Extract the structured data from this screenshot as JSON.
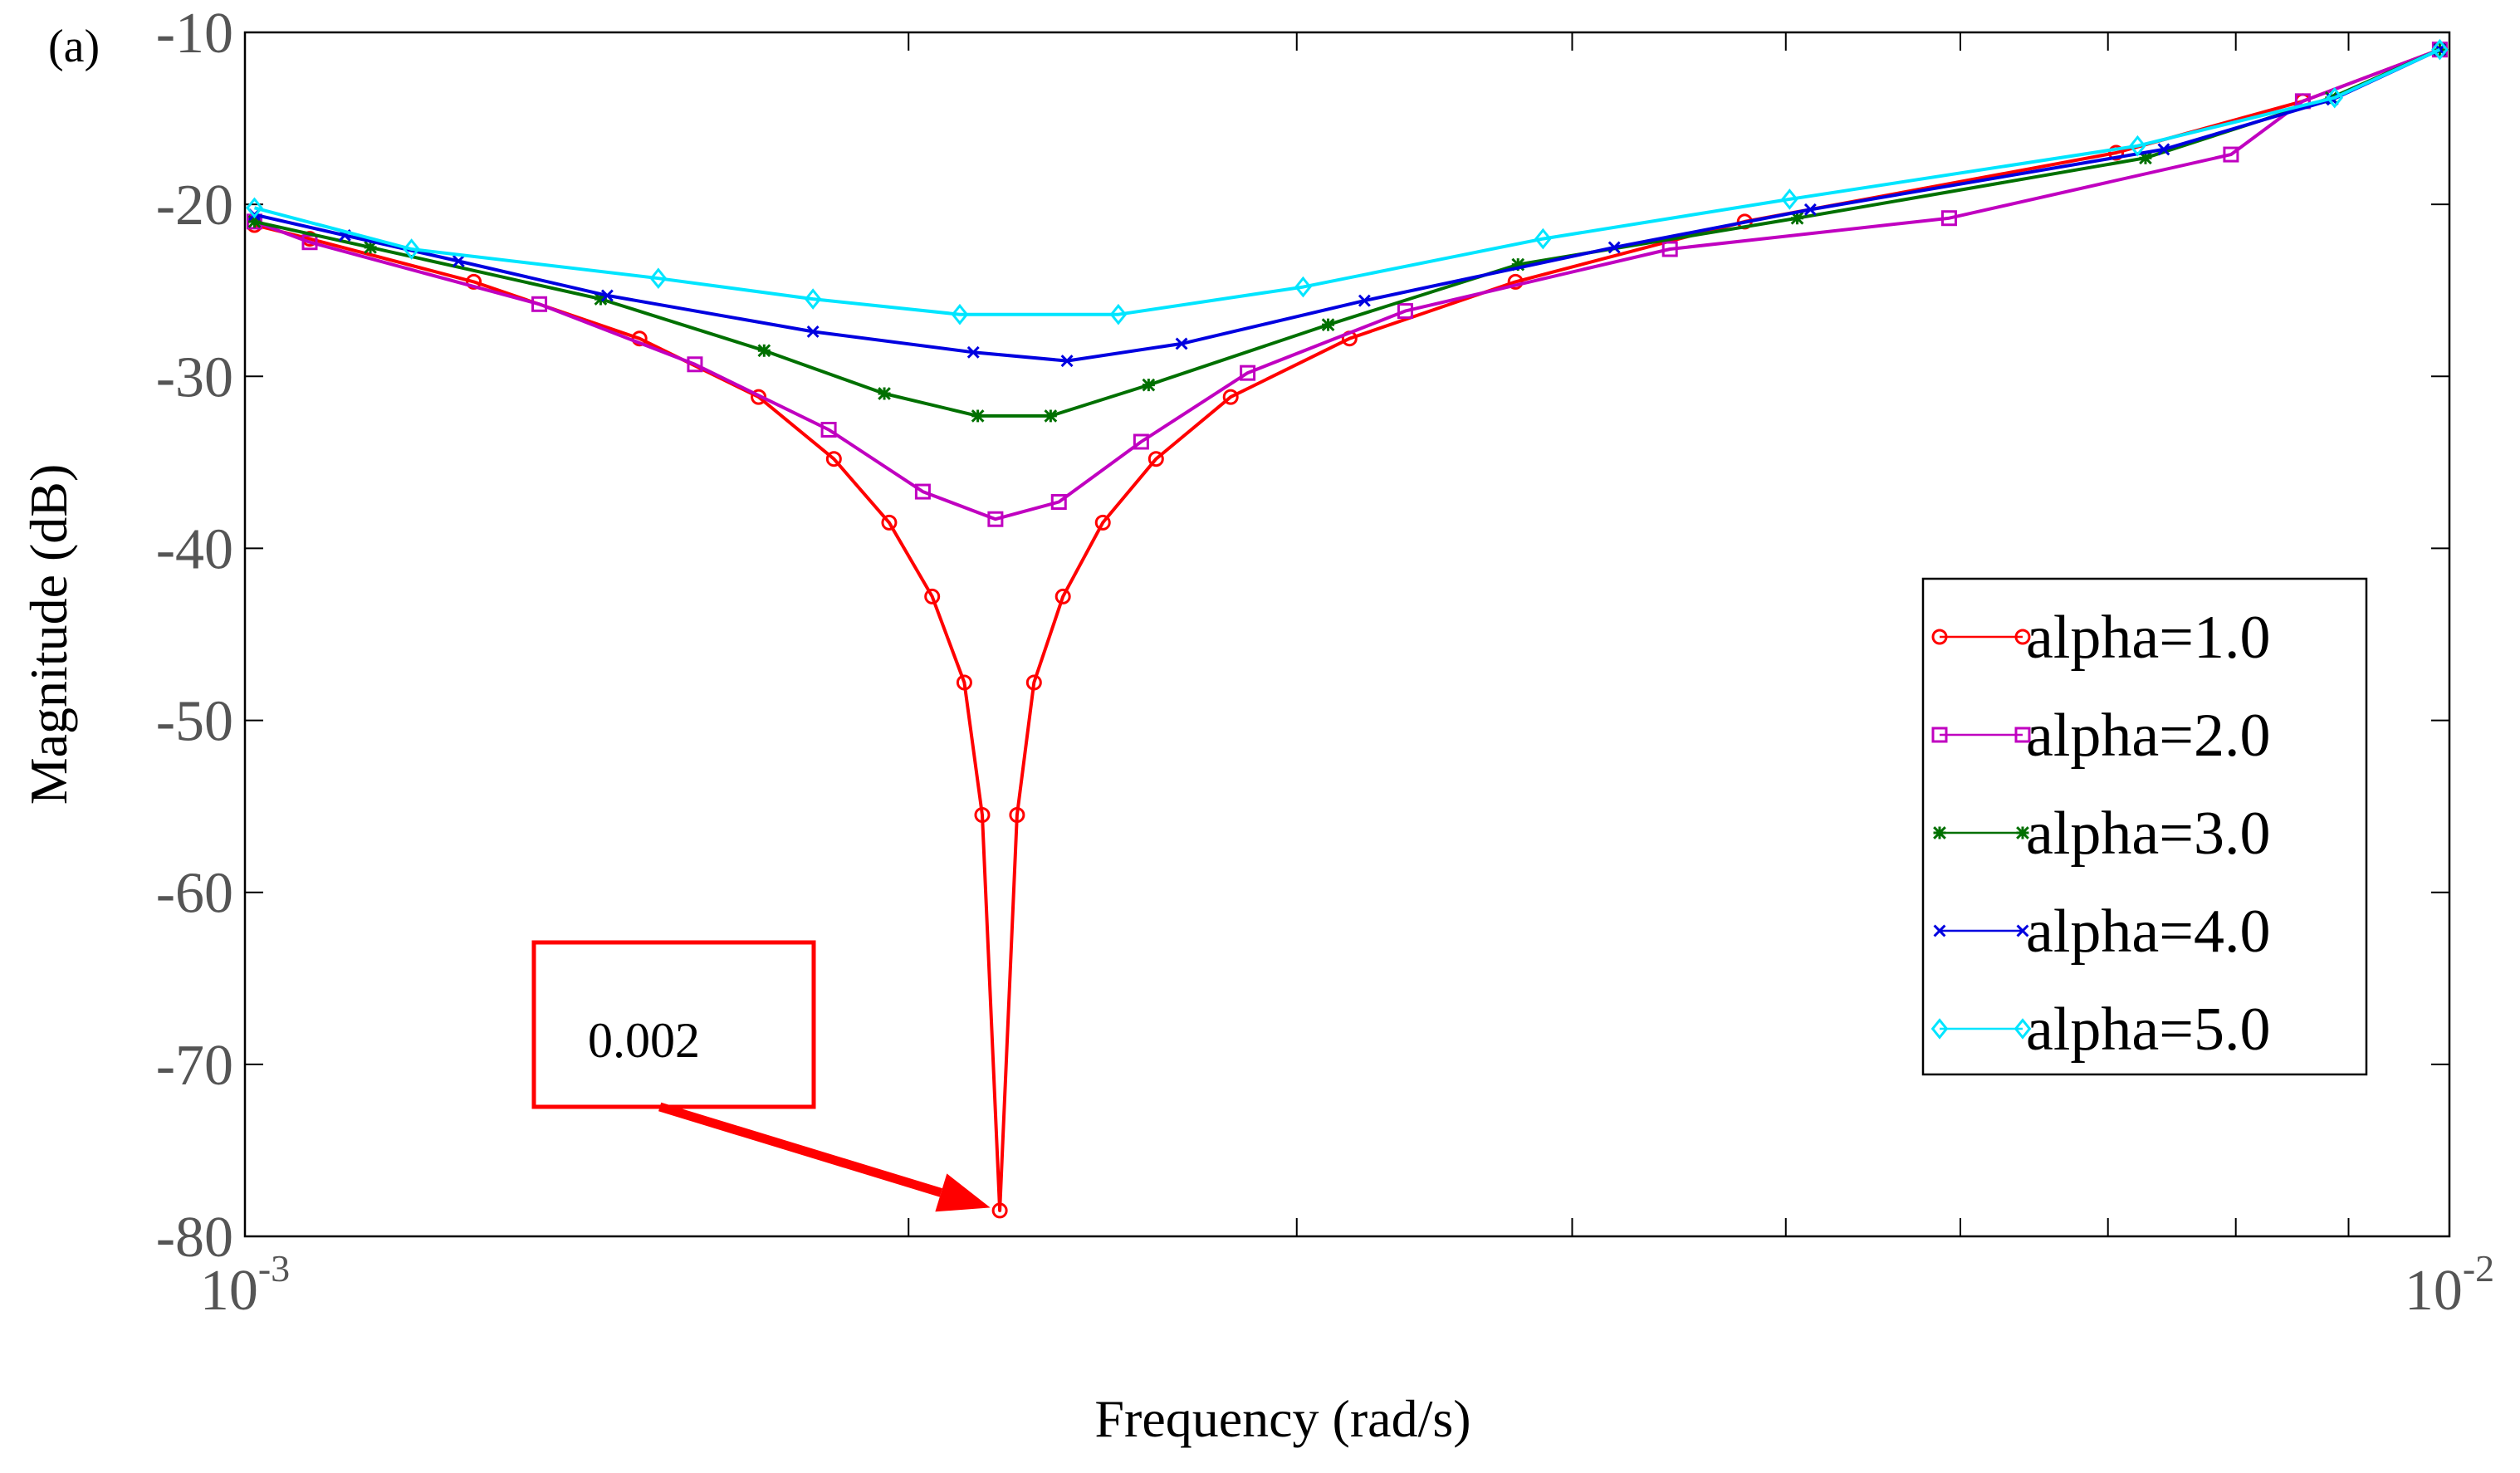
{
  "panel_label": "(a)",
  "chart_data": {
    "type": "line",
    "title": "",
    "xlabel": "Frequency (rad/s)",
    "ylabel": "Magnitude (dB)",
    "xscale": "log",
    "xlim": [
      0.001,
      0.01
    ],
    "ylim": [
      -80,
      -10
    ],
    "grid": false,
    "legend_position": "right",
    "x_ticks": [
      {
        "value": 0.001,
        "base": "10",
        "exp": "-3"
      },
      {
        "value": 0.01,
        "base": "10",
        "exp": "-2"
      }
    ],
    "y_ticks": [
      {
        "value": -10,
        "label": "-10"
      },
      {
        "value": -20,
        "label": "-20"
      },
      {
        "value": -30,
        "label": "-30"
      },
      {
        "value": -40,
        "label": "-40"
      },
      {
        "value": -50,
        "label": "-50"
      },
      {
        "value": -60,
        "label": "-60"
      },
      {
        "value": -70,
        "label": "-70"
      },
      {
        "value": -80,
        "label": "-80"
      }
    ],
    "series": [
      {
        "name": "alpha=1.0",
        "color": "#ff0000",
        "marker": "circle",
        "points": [
          [
            0.00101,
            -21.2
          ],
          [
            0.00107,
            -22.0
          ],
          [
            0.00127,
            -24.5
          ],
          [
            0.00151,
            -27.8
          ],
          [
            0.00171,
            -31.2
          ],
          [
            0.00185,
            -34.8
          ],
          [
            0.00196,
            -38.5
          ],
          [
            0.00205,
            -42.8
          ],
          [
            0.00212,
            -47.8
          ],
          [
            0.00216,
            -55.5
          ],
          [
            0.0022,
            -78.5
          ],
          [
            0.00224,
            -55.5
          ],
          [
            0.00228,
            -47.8
          ],
          [
            0.00235,
            -42.8
          ],
          [
            0.00245,
            -38.5
          ],
          [
            0.00259,
            -34.8
          ],
          [
            0.0028,
            -31.2
          ],
          [
            0.00317,
            -27.8
          ],
          [
            0.00377,
            -24.5
          ],
          [
            0.00479,
            -21.0
          ],
          [
            0.00706,
            -17.0
          ],
          [
            0.00858,
            -14.0
          ],
          [
            0.0099,
            -11.0
          ]
        ]
      },
      {
        "name": "alpha=2.0",
        "color": "#c000c0",
        "marker": "square",
        "points": [
          [
            0.00101,
            -21.0
          ],
          [
            0.00107,
            -22.2
          ],
          [
            0.00136,
            -25.8
          ],
          [
            0.0016,
            -29.3
          ],
          [
            0.00184,
            -33.1
          ],
          [
            0.00203,
            -36.7
          ],
          [
            0.00219,
            -38.3
          ],
          [
            0.00234,
            -37.3
          ],
          [
            0.00255,
            -33.8
          ],
          [
            0.00285,
            -29.8
          ],
          [
            0.00336,
            -26.2
          ],
          [
            0.00443,
            -22.6
          ],
          [
            0.00593,
            -20.8
          ],
          [
            0.00796,
            -17.1
          ],
          [
            0.00858,
            -14.0
          ],
          [
            0.0099,
            -11.0
          ]
        ]
      },
      {
        "name": "alpha=3.0",
        "color": "#007000",
        "marker": "asterisk",
        "points": [
          [
            0.00101,
            -21.0
          ],
          [
            0.00114,
            -22.5
          ],
          [
            0.00145,
            -25.5
          ],
          [
            0.00172,
            -28.5
          ],
          [
            0.00195,
            -31.0
          ],
          [
            0.00215,
            -32.3
          ],
          [
            0.00232,
            -32.3
          ],
          [
            0.00257,
            -30.5
          ],
          [
            0.0031,
            -27.0
          ],
          [
            0.00378,
            -23.5
          ],
          [
            0.00506,
            -20.8
          ],
          [
            0.00728,
            -17.3
          ],
          [
            0.00884,
            -13.8
          ],
          [
            0.0099,
            -11.0
          ]
        ]
      },
      {
        "name": "alpha=4.0",
        "color": "#0000e0",
        "marker": "x",
        "points": [
          [
            0.00101,
            -20.6
          ],
          [
            0.00111,
            -21.8
          ],
          [
            0.00125,
            -23.3
          ],
          [
            0.00146,
            -25.3
          ],
          [
            0.00181,
            -27.4
          ],
          [
            0.00214,
            -28.6
          ],
          [
            0.00236,
            -29.1
          ],
          [
            0.00266,
            -28.1
          ],
          [
            0.00322,
            -25.6
          ],
          [
            0.00418,
            -22.5
          ],
          [
            0.00513,
            -20.3
          ],
          [
            0.00742,
            -16.8
          ],
          [
            0.00885,
            -13.9
          ],
          [
            0.0099,
            -11.0
          ]
        ]
      },
      {
        "name": "alpha=5.0",
        "color": "#00e5ff",
        "marker": "diamond",
        "points": [
          [
            0.00101,
            -20.2
          ],
          [
            0.00119,
            -22.6
          ],
          [
            0.00154,
            -24.3
          ],
          [
            0.00181,
            -25.5
          ],
          [
            0.00211,
            -26.4
          ],
          [
            0.00249,
            -26.4
          ],
          [
            0.00302,
            -24.8
          ],
          [
            0.00388,
            -22.0
          ],
          [
            0.00502,
            -19.7
          ],
          [
            0.00722,
            -16.6
          ],
          [
            0.00887,
            -13.8
          ],
          [
            0.0099,
            -11.0
          ]
        ]
      }
    ],
    "annotation": {
      "text": "0.002",
      "x": 0.0022,
      "y": -78.5,
      "color": "#ff0000"
    }
  }
}
